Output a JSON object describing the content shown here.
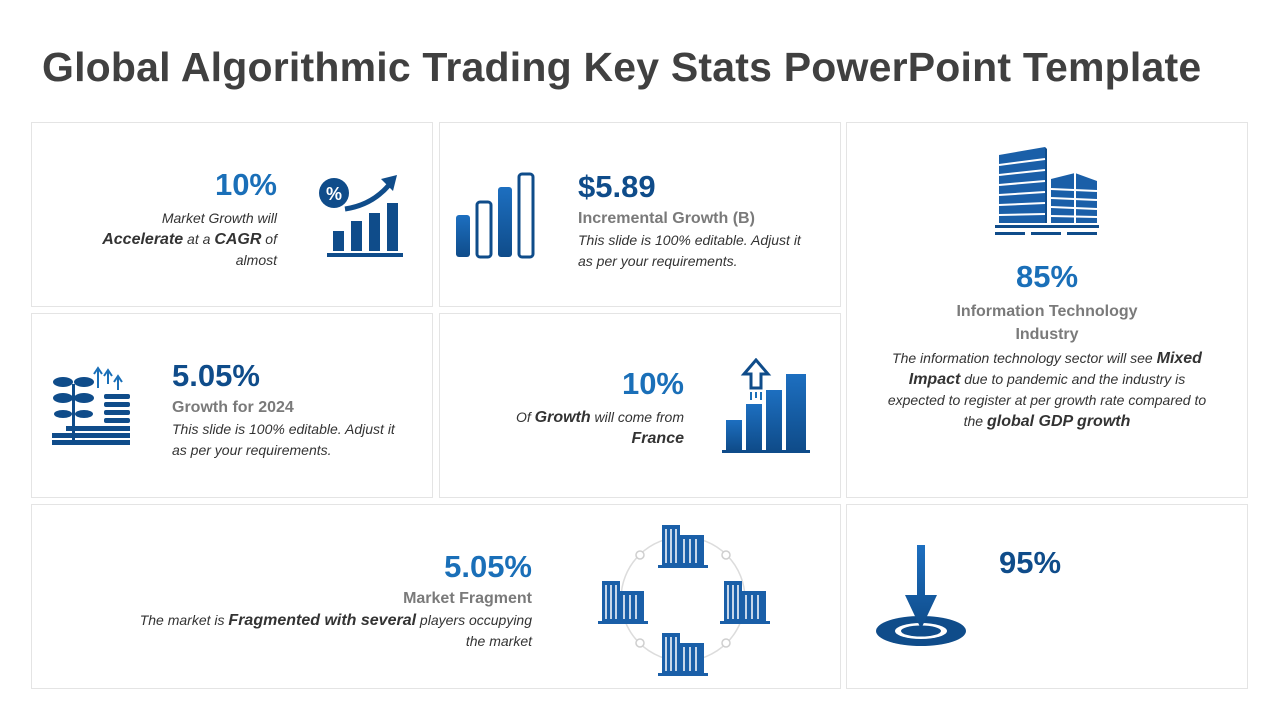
{
  "title": "Global Algorithmic Trading Key Stats PowerPoint Template",
  "colors": {
    "primary": "#0f4c8a",
    "accent": "#1a6fb8",
    "muted": "#7a7a7a"
  },
  "card1": {
    "stat": "10%",
    "desc_pre": "Market Growth will",
    "desc_b1": "Accelerate",
    "desc_mid": " at a ",
    "desc_b2": "CAGR",
    "desc_post": " of",
    "desc_end": "almost",
    "icon": "percent-growth-chart-icon"
  },
  "card2": {
    "stat": "$5.89",
    "subtitle": "Incremental Growth (B)",
    "desc_line1": "This slide is 100% editable. Adjust it",
    "desc_line2": "as per your requirements.",
    "icon": "bar-chart-icon"
  },
  "card3": {
    "stat": "85%",
    "subtitle_line1": "Information Technology",
    "subtitle_line2": "Industry",
    "desc_pre": "The information technology sector will see ",
    "desc_b1": "Mixed",
    "desc_b2": "Impact",
    "desc_mid": " due to pandemic and the industry is",
    "desc_line3": "expected to register at per growth rate compared to",
    "desc_pre4": "the ",
    "desc_b3": "global GDP growth",
    "icon": "buildings-icon"
  },
  "card4": {
    "stat": "5.05%",
    "subtitle": "Growth for 2024",
    "desc_line1": "This slide is 100% editable. Adjust it",
    "desc_line2": "as per your requirements.",
    "icon": "plant-coins-growth-icon"
  },
  "card5": {
    "stat": "10%",
    "desc_pre": "Of ",
    "desc_b1": "Growth",
    "desc_post": " will come from",
    "desc_b2": "France",
    "icon": "rising-bar-chart-icon"
  },
  "card6": {
    "stat": "5.05%",
    "subtitle": "Market Fragment",
    "desc_pre": "The market is ",
    "desc_b1": "Fragmented with several",
    "desc_post": " players occupying",
    "desc_end": "the market",
    "icon": "buildings-network-icon"
  },
  "card7": {
    "stat": "95%",
    "icon": "location-target-icon"
  }
}
